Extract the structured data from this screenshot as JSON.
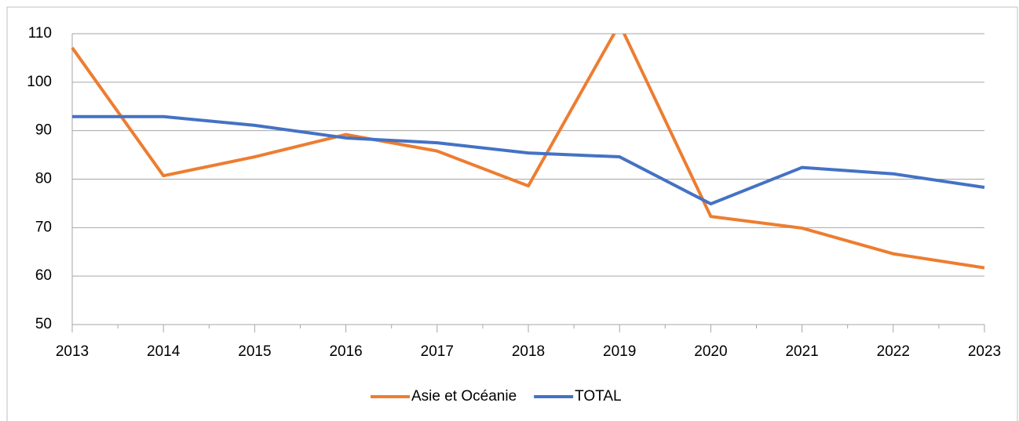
{
  "chart_data": {
    "type": "line",
    "categories": [
      "2013",
      "2014",
      "2015",
      "2016",
      "2017",
      "2018",
      "2019",
      "2020",
      "2021",
      "2022",
      "2023"
    ],
    "series": [
      {
        "name": "Asie et Océanie",
        "color": "#ed7d31",
        "values": [
          107.1,
          80.7,
          84.6,
          89.2,
          85.8,
          78.6,
          112,
          72.3,
          69.9,
          64.6,
          61.7
        ]
      },
      {
        "name": "TOTAL",
        "color": "#4472c4",
        "values": [
          92.9,
          92.9,
          91.1,
          88.5,
          87.5,
          85.4,
          84.6,
          74.9,
          82.4,
          81.1,
          78.3
        ]
      }
    ],
    "ylim": [
      50,
      110
    ],
    "yticks": [
      50,
      60,
      70,
      80,
      90,
      100,
      110
    ],
    "grid": true,
    "legend": "bottom"
  }
}
